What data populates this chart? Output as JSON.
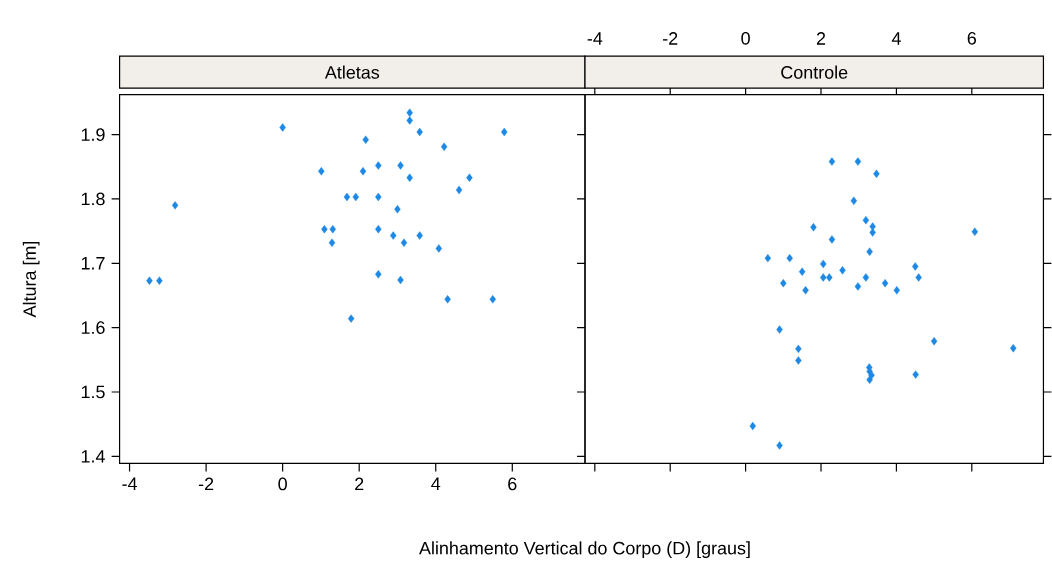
{
  "chart_data": [
    {
      "type": "scatter",
      "title": "Atletas",
      "xlabel": "Alinhamento Vertical do Corpo (D) [graus]",
      "ylabel": "Altura [m]",
      "color": "#1e88e5",
      "marker": "diamond",
      "xlim": [
        -4.26,
        7.9
      ],
      "ylim": [
        1.389,
        1.962
      ],
      "xticks": [
        -4,
        -2,
        0,
        2,
        4,
        6
      ],
      "yticks": [
        1.4,
        1.5,
        1.6,
        1.7,
        1.8,
        1.9
      ],
      "x": [
        0.0,
        3.32,
        3.32,
        3.58,
        5.79,
        2.17,
        4.22,
        1.01,
        2.1,
        2.5,
        3.08,
        3.32,
        4.88,
        4.61,
        -2.81,
        1.68,
        1.91,
        2.5,
        3.0,
        1.09,
        1.31,
        2.5,
        2.89,
        3.58,
        1.29,
        3.17,
        4.08,
        -3.48,
        -3.22,
        2.5,
        3.08,
        4.31,
        5.49,
        1.79
      ],
      "values": [
        1.911,
        1.934,
        1.922,
        1.904,
        1.904,
        1.892,
        1.881,
        1.843,
        1.843,
        1.852,
        1.852,
        1.833,
        1.833,
        1.814,
        1.79,
        1.803,
        1.803,
        1.803,
        1.784,
        1.753,
        1.753,
        1.753,
        1.743,
        1.743,
        1.732,
        1.732,
        1.723,
        1.673,
        1.673,
        1.683,
        1.674,
        1.644,
        1.644,
        1.614
      ]
    },
    {
      "type": "scatter",
      "title": "Controle",
      "color": "#1e88e5",
      "marker": "diamond",
      "tick_labels": "x",
      "xlim": [
        -4.26,
        7.9
      ],
      "ylim": [
        1.389,
        1.962
      ],
      "xticks": [
        -4,
        -2,
        0,
        2,
        4,
        6
      ],
      "yticks": [
        1.4,
        1.5,
        1.6,
        1.7,
        1.8,
        1.9
      ],
      "x": [
        2.29,
        2.98,
        3.47,
        2.87,
        3.19,
        3.37,
        3.37,
        1.8,
        6.08,
        2.29,
        3.29,
        0.59,
        1.17,
        2.06,
        1.5,
        2.57,
        4.5,
        2.06,
        2.22,
        3.19,
        4.59,
        1.0,
        3.7,
        2.98,
        1.59,
        4.01,
        0.9,
        5.0,
        7.1,
        1.4,
        1.4,
        3.28,
        3.29,
        3.34,
        3.29,
        4.51,
        0.19,
        0.9
      ],
      "values": [
        1.858,
        1.858,
        1.839,
        1.797,
        1.767,
        1.757,
        1.748,
        1.756,
        1.749,
        1.737,
        1.718,
        1.708,
        1.708,
        1.699,
        1.687,
        1.689,
        1.695,
        1.678,
        1.678,
        1.678,
        1.678,
        1.669,
        1.669,
        1.664,
        1.658,
        1.658,
        1.597,
        1.579,
        1.568,
        1.567,
        1.549,
        1.538,
        1.532,
        1.526,
        1.519,
        1.527,
        1.447,
        1.417
      ]
    }
  ]
}
